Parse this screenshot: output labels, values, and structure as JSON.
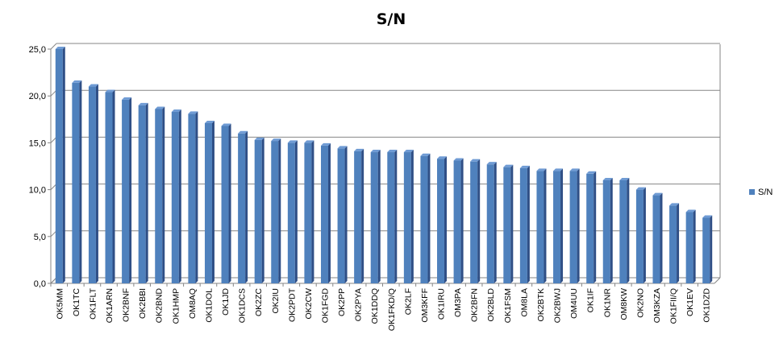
{
  "chart_data": {
    "type": "bar",
    "title": "S/N",
    "xlabel": "",
    "ylabel": "",
    "ylim": [
      0,
      25
    ],
    "y_ticks": [
      "0,0",
      "5,0",
      "10,0",
      "15,0",
      "20,0",
      "25,0"
    ],
    "grid": true,
    "legend_position": "right",
    "bar_style": "3d",
    "colors": {
      "bar": "#4f81bd",
      "bar_dark": "#2f4f86",
      "grid": "#868686"
    },
    "categories": [
      "OK5MM",
      "OK1TC",
      "OK1FLT",
      "OK1ARN",
      "OK2BNF",
      "OK2BBI",
      "OK2BND",
      "OK1HMP",
      "OM8AQ",
      "OK1DOL",
      "OK1JD",
      "OK1DCS",
      "OK2ZC",
      "OK2IU",
      "OK2PDT",
      "OK2CW",
      "OK1FGD",
      "OK2PP",
      "OK2PYA",
      "OK1DDQ",
      "OK1FKD/Q",
      "OK2LF",
      "OM3KFF",
      "OK1IRU",
      "OM3PA",
      "OK2BFN",
      "OK2BLD",
      "OK1FSM",
      "OM8LA",
      "OK2BTK",
      "OK2BWJ",
      "OM4UU",
      "OK1IF",
      "OK1NR",
      "OM8KW",
      "OK2NO",
      "OM3KZA",
      "OK1FII/Q",
      "OK1EV",
      "OK1DZD"
    ],
    "series": [
      {
        "name": "S/N",
        "values": [
          25.0,
          21.4,
          21.0,
          20.4,
          19.6,
          19.0,
          18.6,
          18.3,
          18.1,
          17.1,
          16.8,
          16.0,
          15.3,
          15.2,
          15.0,
          15.0,
          14.7,
          14.4,
          14.1,
          14.0,
          14.0,
          14.0,
          13.6,
          13.3,
          13.1,
          13.0,
          12.7,
          12.4,
          12.3,
          12.0,
          12.0,
          12.0,
          11.7,
          11.0,
          11.0,
          10.0,
          9.4,
          8.3,
          7.6,
          7.0
        ]
      }
    ]
  }
}
